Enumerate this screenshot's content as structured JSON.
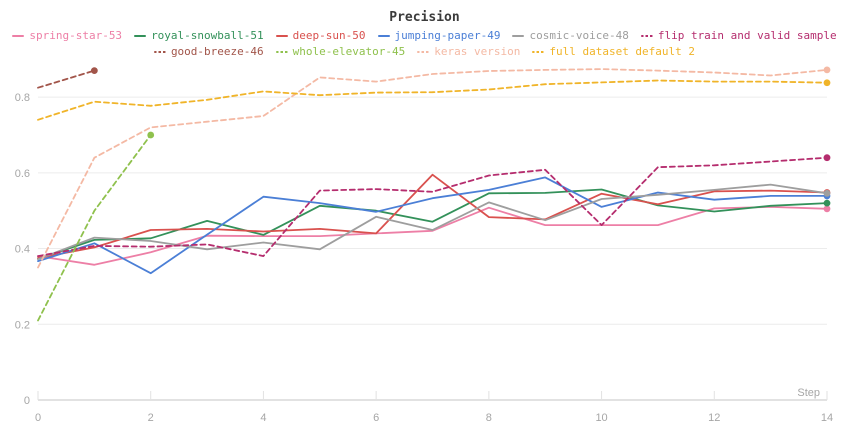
{
  "title": "Precision",
  "axis": {
    "x_label": "Step",
    "x_tick_labels": [
      "0",
      "2",
      "4",
      "6",
      "8",
      "10",
      "12",
      "14"
    ],
    "y_tick_labels": [
      "0",
      "0.2",
      "0.4",
      "0.6",
      "0.8"
    ]
  },
  "colors": {
    "grid": "#ececec",
    "axis_line": "#e2e2e2",
    "tick_text": "#a6a6a6",
    "title_text": "#3b3b3b"
  },
  "chart_data": {
    "type": "line",
    "title": "Precision",
    "xlabel": "Step",
    "ylabel": "",
    "xlim": [
      0,
      14
    ],
    "ylim": [
      0,
      0.9
    ],
    "x_ticks": [
      0,
      2,
      4,
      6,
      8,
      10,
      12,
      14
    ],
    "y_ticks": [
      0,
      0.2,
      0.4,
      0.6,
      0.8
    ],
    "grid": "horizontal",
    "legend_position": "top",
    "x": [
      0,
      1,
      2,
      3,
      4,
      5,
      6,
      7,
      8,
      9,
      10,
      11,
      12,
      13,
      14
    ],
    "series": [
      {
        "name": "spring-star-53",
        "color": "#ed7fa6",
        "dashed": false,
        "end_dot": true,
        "values": [
          0.38,
          0.357,
          0.39,
          0.434,
          0.433,
          0.433,
          0.44,
          0.447,
          0.508,
          0.462,
          0.462,
          0.462,
          0.506,
          0.51,
          0.505
        ]
      },
      {
        "name": "royal-snowball-51",
        "color": "#33915a",
        "dashed": false,
        "end_dot": true,
        "values": [
          0.373,
          0.423,
          0.427,
          0.473,
          0.436,
          0.513,
          0.5,
          0.471,
          0.546,
          0.547,
          0.556,
          0.514,
          0.498,
          0.513,
          0.52
        ]
      },
      {
        "name": "deep-sun-50",
        "color": "#d9514e",
        "dashed": false,
        "end_dot": true,
        "values": [
          0.375,
          0.403,
          0.449,
          0.452,
          0.445,
          0.452,
          0.44,
          0.595,
          0.483,
          0.477,
          0.545,
          0.517,
          0.551,
          0.553,
          0.548
        ]
      },
      {
        "name": "jumping-paper-49",
        "color": "#4b7fd6",
        "dashed": false,
        "end_dot": true,
        "values": [
          0.367,
          0.414,
          0.335,
          0.437,
          0.537,
          0.52,
          0.497,
          0.533,
          0.555,
          0.588,
          0.51,
          0.548,
          0.529,
          0.539,
          0.539
        ]
      },
      {
        "name": "cosmic-voice-48",
        "color": "#9e9e9e",
        "dashed": false,
        "end_dot": true,
        "values": [
          0.372,
          0.429,
          0.42,
          0.398,
          0.416,
          0.398,
          0.484,
          0.449,
          0.522,
          0.475,
          0.531,
          0.542,
          0.555,
          0.569,
          0.546
        ]
      },
      {
        "name": "flip train and valid sample",
        "color": "#b52d6e",
        "dashed": true,
        "end_dot": true,
        "values": [
          0.38,
          0.407,
          0.405,
          0.411,
          0.38,
          0.553,
          0.557,
          0.55,
          0.593,
          0.608,
          0.462,
          0.615,
          0.62,
          0.63,
          0.64
        ]
      },
      {
        "name": "good-breeze-46",
        "color": "#a2554a",
        "dashed": true,
        "end_dot": true,
        "x": [
          0,
          1
        ],
        "values": [
          0.825,
          0.87
        ]
      },
      {
        "name": "whole-elevator-45",
        "color": "#8fc14d",
        "dashed": true,
        "end_dot": true,
        "x": [
          0,
          1,
          2
        ],
        "values": [
          0.21,
          0.5,
          0.7
        ]
      },
      {
        "name": "keras version",
        "color": "#f4b9a4",
        "dashed": true,
        "end_dot": true,
        "values": [
          0.35,
          0.64,
          0.72,
          0.735,
          0.75,
          0.852,
          0.841,
          0.861,
          0.869,
          0.872,
          0.874,
          0.87,
          0.865,
          0.857,
          0.872
        ]
      },
      {
        "name": "full dataset default 2",
        "color": "#f0b429",
        "dashed": true,
        "end_dot": true,
        "values": [
          0.74,
          0.788,
          0.777,
          0.793,
          0.815,
          0.805,
          0.812,
          0.813,
          0.82,
          0.834,
          0.839,
          0.844,
          0.841,
          0.841,
          0.838
        ]
      }
    ],
    "legend_rows": [
      [
        0,
        1,
        2,
        3,
        4,
        5
      ],
      [
        6,
        7,
        8,
        9
      ]
    ]
  }
}
